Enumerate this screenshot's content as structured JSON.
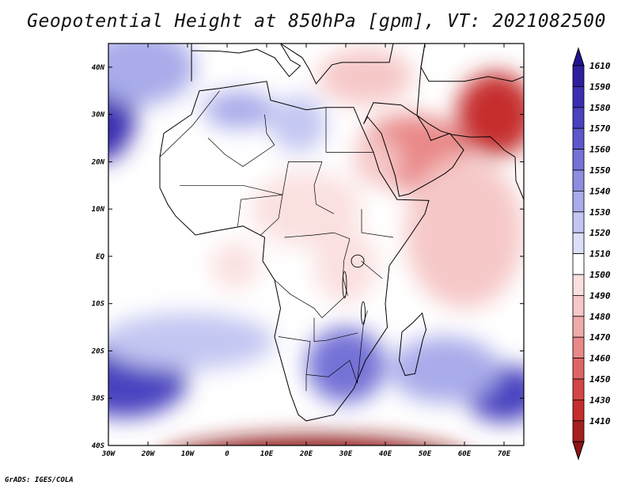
{
  "title": "Geopotential Height at 850hPa [gpm], VT: 2021082500",
  "footer": "GrADS: IGES/COLA",
  "map": {
    "lon_range": [
      -30,
      75
    ],
    "lat_range": [
      -40,
      45
    ],
    "lon_ticks": [
      {
        "value": -30,
        "label": "30W"
      },
      {
        "value": -20,
        "label": "20W"
      },
      {
        "value": -10,
        "label": "10W"
      },
      {
        "value": 0,
        "label": "0"
      },
      {
        "value": 10,
        "label": "10E"
      },
      {
        "value": 20,
        "label": "20E"
      },
      {
        "value": 30,
        "label": "30E"
      },
      {
        "value": 40,
        "label": "40E"
      },
      {
        "value": 50,
        "label": "50E"
      },
      {
        "value": 60,
        "label": "60E"
      },
      {
        "value": 70,
        "label": "70E"
      }
    ],
    "lat_ticks": [
      {
        "value": 40,
        "label": "40N"
      },
      {
        "value": 30,
        "label": "30N"
      },
      {
        "value": 20,
        "label": "20N"
      },
      {
        "value": 10,
        "label": "10N"
      },
      {
        "value": 0,
        "label": "EQ"
      },
      {
        "value": -10,
        "label": "10S"
      },
      {
        "value": -20,
        "label": "20S"
      },
      {
        "value": -30,
        "label": "30S"
      },
      {
        "value": -40,
        "label": "40S"
      }
    ],
    "base_value": 1510,
    "fields": [
      {
        "name": "azores-high",
        "lon": -32,
        "lat": 31,
        "value": 1590,
        "lon_radius": 9,
        "lat_radius": 11
      },
      {
        "name": "n-atlantic-high",
        "lon": -22,
        "lat": 40,
        "value": 1545,
        "lon_radius": 14,
        "lat_radius": 8
      },
      {
        "name": "sahara-high",
        "lon": 3,
        "lat": 31,
        "value": 1545,
        "lon_radius": 9,
        "lat_radius": 4
      },
      {
        "name": "libya-high",
        "lon": 18,
        "lat": 28,
        "value": 1530,
        "lon_radius": 7,
        "lat_radius": 6
      },
      {
        "name": "arabia-low",
        "lon": 47,
        "lat": 22,
        "value": 1475,
        "lon_radius": 14,
        "lat_radius": 8
      },
      {
        "name": "iran-low",
        "lon": 68,
        "lat": 30,
        "value": 1440,
        "lon_radius": 10,
        "lat_radius": 9
      },
      {
        "name": "red-sea-low",
        "lon": 38,
        "lat": 20,
        "value": 1490,
        "lon_radius": 6,
        "lat_radius": 5
      },
      {
        "name": "mediterranean-low",
        "lon": 35,
        "lat": 38,
        "value": 1490,
        "lon_radius": 12,
        "lat_radius": 6
      },
      {
        "name": "indian-ocean-low",
        "lon": 60,
        "lat": 5,
        "value": 1492,
        "lon_radius": 15,
        "lat_radius": 16
      },
      {
        "name": "central-africa-low",
        "lon": 20,
        "lat": 10,
        "value": 1500,
        "lon_radius": 14,
        "lat_radius": 8
      },
      {
        "name": "gulf-guinea-low",
        "lon": 2,
        "lat": -2,
        "value": 1502,
        "lon_radius": 6,
        "lat_radius": 5
      },
      {
        "name": "east-africa-low",
        "lon": 30,
        "lat": -2,
        "value": 1500,
        "lon_radius": 8,
        "lat_radius": 8
      },
      {
        "name": "st-helena-high",
        "lon": -26,
        "lat": -26,
        "value": 1580,
        "lon_radius": 16,
        "lat_radius": 8
      },
      {
        "name": "south-atlantic-belt",
        "lon": -10,
        "lat": -18,
        "value": 1530,
        "lon_radius": 22,
        "lat_radius": 6
      },
      {
        "name": "southern-africa-high",
        "lon": 30,
        "lat": -23,
        "value": 1560,
        "lon_radius": 10,
        "lat_radius": 8
      },
      {
        "name": "mascarene-high",
        "lon": 70,
        "lat": -29,
        "value": 1585,
        "lon_radius": 10,
        "lat_radius": 6
      },
      {
        "name": "indian-high-belt",
        "lon": 55,
        "lat": -24,
        "value": 1540,
        "lon_radius": 14,
        "lat_radius": 7
      },
      {
        "name": "southern-ocean-low",
        "lon": 22,
        "lat": -44,
        "value": 1390,
        "lon_radius": 40,
        "lat_radius": 6
      }
    ],
    "land": [
      {
        "name": "africa",
        "coords": [
          [
            -17,
            21
          ],
          [
            -16,
            26
          ],
          [
            -9,
            30
          ],
          [
            -7,
            35
          ],
          [
            -2,
            35.5
          ],
          [
            10,
            37
          ],
          [
            11,
            33
          ],
          [
            20,
            31
          ],
          [
            25,
            31.5
          ],
          [
            32,
            31.5
          ],
          [
            34,
            27.5
          ],
          [
            37,
            22
          ],
          [
            38.5,
            18
          ],
          [
            43,
            12
          ],
          [
            51,
            11.8
          ],
          [
            50,
            9
          ],
          [
            46,
            4
          ],
          [
            41,
            -2
          ],
          [
            40,
            -10
          ],
          [
            40.5,
            -15
          ],
          [
            35,
            -22
          ],
          [
            32,
            -28
          ],
          [
            27,
            -33.5
          ],
          [
            20,
            -34.8
          ],
          [
            18,
            -33.5
          ],
          [
            16,
            -29
          ],
          [
            12,
            -17
          ],
          [
            13.5,
            -11
          ],
          [
            12,
            -5
          ],
          [
            9,
            -1
          ],
          [
            9.5,
            4
          ],
          [
            4,
            6.4
          ],
          [
            -4,
            5.2
          ],
          [
            -8,
            4.5
          ],
          [
            -13,
            8.5
          ],
          [
            -15,
            11
          ],
          [
            -17,
            14.5
          ],
          [
            -17,
            21
          ]
        ]
      },
      {
        "name": "arabia",
        "coords": [
          [
            34.5,
            28
          ],
          [
            35.5,
            29.5
          ],
          [
            39,
            26
          ],
          [
            42.5,
            17
          ],
          [
            43.5,
            12.7
          ],
          [
            46,
            13.2
          ],
          [
            52,
            16
          ],
          [
            55,
            17.5
          ],
          [
            57,
            18.8
          ],
          [
            59.8,
            22.5
          ],
          [
            56.3,
            26
          ],
          [
            51.5,
            24.5
          ],
          [
            50.5,
            26.5
          ],
          [
            48,
            29.8
          ],
          [
            47.5,
            30
          ],
          [
            44,
            32
          ],
          [
            37,
            32.5
          ],
          [
            34.5,
            28
          ]
        ]
      },
      {
        "name": "europe-asia",
        "coords": [
          [
            -9,
            37
          ],
          [
            -9,
            43.5
          ],
          [
            -2,
            43.4
          ],
          [
            3,
            43
          ],
          [
            7.5,
            43.8
          ],
          [
            12,
            42
          ],
          [
            15.7,
            38
          ],
          [
            18.5,
            40.3
          ],
          [
            16,
            41.5
          ],
          [
            13.5,
            45
          ],
          [
            19,
            42
          ],
          [
            20.8,
            39.5
          ],
          [
            22.5,
            36.5
          ],
          [
            24,
            38
          ],
          [
            26.5,
            40.5
          ],
          [
            29,
            41
          ],
          [
            36,
            41
          ],
          [
            41,
            41
          ],
          [
            42,
            45
          ],
          [
            50,
            45
          ],
          [
            49,
            40
          ],
          [
            51,
            37
          ],
          [
            54,
            37
          ],
          [
            60,
            37
          ],
          [
            66,
            38
          ],
          [
            72,
            37
          ],
          [
            75,
            38
          ],
          [
            75,
            45
          ],
          [
            -9,
            45
          ],
          [
            -9,
            37
          ]
        ]
      },
      {
        "name": "iran-india",
        "coords": [
          [
            48,
            29.8
          ],
          [
            51,
            28
          ],
          [
            54,
            26.5
          ],
          [
            57,
            25.7
          ],
          [
            61.5,
            25.2
          ],
          [
            66.5,
            25.3
          ],
          [
            68.5,
            23.8
          ],
          [
            70,
            22.5
          ],
          [
            72.8,
            21
          ],
          [
            73,
            16
          ],
          [
            74.5,
            13
          ],
          [
            75,
            12
          ],
          [
            75,
            45
          ],
          [
            50,
            45
          ],
          [
            49,
            40
          ],
          [
            48,
            29.8
          ]
        ]
      },
      {
        "name": "madagascar",
        "coords": [
          [
            49.3,
            -12
          ],
          [
            50.3,
            -15.5
          ],
          [
            49.5,
            -17.5
          ],
          [
            47.5,
            -24.8
          ],
          [
            45,
            -25.2
          ],
          [
            43.5,
            -22
          ],
          [
            44.2,
            -16
          ],
          [
            47,
            -14
          ],
          [
            49.3,
            -12
          ]
        ]
      }
    ],
    "borders": [
      {
        "name": "maghreb",
        "coords": [
          [
            -17,
            21
          ],
          [
            -8.7,
            27.7
          ],
          [
            -1.9,
            35
          ]
        ]
      },
      {
        "name": "algeria-mali",
        "coords": [
          [
            -4.8,
            25
          ],
          [
            -0.5,
            21.5
          ],
          [
            4,
            19
          ],
          [
            11.9,
            23.5
          ]
        ]
      },
      {
        "name": "algeria-libya",
        "coords": [
          [
            9.5,
            30
          ],
          [
            10,
            26
          ],
          [
            12,
            23.5
          ]
        ]
      },
      {
        "name": "sahel-north",
        "coords": [
          [
            -12,
            15
          ],
          [
            -4,
            15
          ],
          [
            4,
            15
          ],
          [
            14,
            13
          ],
          [
            15.5,
            20
          ],
          [
            24,
            20
          ]
        ]
      },
      {
        "name": "egypt-libya",
        "coords": [
          [
            25,
            31.5
          ],
          [
            25,
            22
          ]
        ]
      },
      {
        "name": "egypt-sudan",
        "coords": [
          [
            25,
            22
          ],
          [
            36.9,
            22
          ]
        ]
      },
      {
        "name": "chad-sudan",
        "coords": [
          [
            24,
            20
          ],
          [
            22,
            15
          ],
          [
            22.5,
            11
          ],
          [
            27,
            9
          ]
        ]
      },
      {
        "name": "nigeria",
        "coords": [
          [
            2.7,
            6.4
          ],
          [
            3.5,
            12
          ],
          [
            14,
            13
          ],
          [
            13,
            8
          ],
          [
            8.5,
            4.5
          ]
        ]
      },
      {
        "name": "car-congo",
        "coords": [
          [
            14.5,
            4
          ],
          [
            22,
            4.5
          ],
          [
            27,
            5
          ],
          [
            31,
            3.7
          ]
        ]
      },
      {
        "name": "drc-east",
        "coords": [
          [
            31,
            3.7
          ],
          [
            29.5,
            -1
          ],
          [
            29.3,
            -4.5
          ],
          [
            30.5,
            -8.3
          ]
        ]
      },
      {
        "name": "sudan-ethiopia",
        "coords": [
          [
            34,
            10
          ],
          [
            34,
            5
          ],
          [
            42,
            4
          ]
        ]
      },
      {
        "name": "kenya-tanzania",
        "coords": [
          [
            33.9,
            -1
          ],
          [
            39.2,
            -4.7
          ]
        ]
      },
      {
        "name": "angola-drc",
        "coords": [
          [
            12,
            -5
          ],
          [
            16,
            -8
          ],
          [
            22,
            -11
          ],
          [
            24,
            -13
          ],
          [
            30,
            -8.3
          ]
        ]
      },
      {
        "name": "zambia-south",
        "coords": [
          [
            22,
            -13
          ],
          [
            22,
            -18
          ],
          [
            25,
            -17.8
          ],
          [
            33,
            -16.2
          ]
        ]
      },
      {
        "name": "namibia-south",
        "coords": [
          [
            13,
            -17
          ],
          [
            21,
            -18
          ],
          [
            20,
            -25
          ],
          [
            20,
            -28.5
          ]
        ]
      },
      {
        "name": "south-africa-north",
        "coords": [
          [
            20,
            -25
          ],
          [
            25.6,
            -25.5
          ],
          [
            31,
            -22
          ],
          [
            32.9,
            -26.8
          ]
        ]
      },
      {
        "name": "mozambique",
        "coords": [
          [
            35.5,
            -11.5
          ],
          [
            34.5,
            -14
          ],
          [
            32.9,
            -26.8
          ]
        ]
      }
    ],
    "lakes": [
      {
        "name": "lake-victoria",
        "lon": 33,
        "lat": -1,
        "lon_radius": 1.6,
        "lat_radius": 1.3
      },
      {
        "name": "lake-tanganyika",
        "lon": 29.7,
        "lat": -6,
        "lon_radius": 0.5,
        "lat_radius": 2.8
      },
      {
        "name": "lake-malawi",
        "lon": 34.4,
        "lat": -12,
        "lon_radius": 0.5,
        "lat_radius": 2.4
      }
    ]
  },
  "legend": {
    "levels": [
      {
        "label": "1610",
        "color": "#2d1f9e"
      },
      {
        "label": "1590",
        "color": "#3b2fb1"
      },
      {
        "label": "1580",
        "color": "#4a42c0"
      },
      {
        "label": "1570",
        "color": "#5d57cc"
      },
      {
        "label": "1560",
        "color": "#7472d6"
      },
      {
        "label": "1550",
        "color": "#8d8ee0"
      },
      {
        "label": "1540",
        "color": "#a9abea"
      },
      {
        "label": "1530",
        "color": "#c3c6f2"
      },
      {
        "label": "1520",
        "color": "#dcdff8"
      },
      {
        "label": "1510",
        "color": "#ffffff"
      },
      {
        "label": "1500",
        "color": "#fbe0e0"
      },
      {
        "label": "1490",
        "color": "#f6c8c8"
      },
      {
        "label": "1480",
        "color": "#f0aaaa"
      },
      {
        "label": "1470",
        "color": "#e98888"
      },
      {
        "label": "1460",
        "color": "#df6565"
      },
      {
        "label": "1450",
        "color": "#d44545"
      },
      {
        "label": "1430",
        "color": "#c62d2d"
      },
      {
        "label": "1410",
        "color": "#a71f1f"
      }
    ],
    "overflow_high_color": "#1e1490",
    "overflow_low_color": "#8d1515"
  }
}
